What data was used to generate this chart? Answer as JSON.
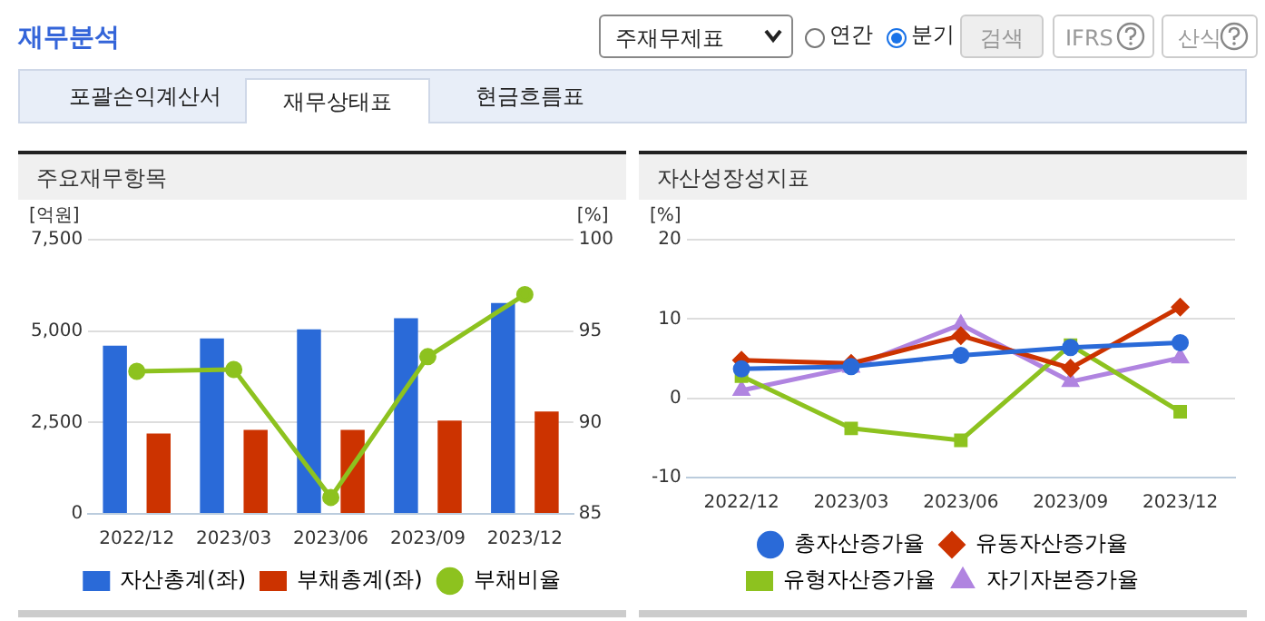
{
  "chart_data": [
    {
      "type": "bar",
      "title": "주요재무항목",
      "ylabel": "[억원]",
      "y2label": "[%]",
      "annotations": [
        "재무분석",
        "주재무제표",
        "연간",
        "분기",
        "검색",
        "IFRS",
        "산식",
        "포괄손익계산서",
        "재무상태표",
        "현금흐름표"
      ],
      "categories": [
        "2022/12",
        "2023/03",
        "2023/06",
        "2023/09",
        "2023/12"
      ],
      "series": [
        {
          "name": "자산총계(좌)",
          "color": "#2a6ad8",
          "values": [
            4600,
            4800,
            5050,
            5350,
            5770
          ]
        },
        {
          "name": "부채총계(좌)",
          "color": "#cc3300",
          "values": [
            2200,
            2300,
            2300,
            2550,
            2800
          ]
        },
        {
          "name": "부채비율",
          "type": "line",
          "axis": "y2",
          "marker": "circle",
          "color": "#8dc21f",
          "values": [
            92.8,
            92.9,
            85.9,
            93.6,
            97.0
          ]
        }
      ],
      "ylim": [
        0,
        7500
      ],
      "yticks": [
        0,
        {
          "value": 2500,
          "label": "2,500"
        },
        {
          "value": 5000,
          "label": "5,000"
        },
        {
          "value": 7500,
          "label": "7,500"
        }
      ],
      "y2lim": [
        85,
        100
      ],
      "y2ticks": [
        85,
        90,
        95,
        100
      ],
      "grid": "y",
      "legend": "bottom"
    },
    {
      "type": "line",
      "title": "자산성장성지표",
      "ylabel": "[%]",
      "categories": [
        "2022/12",
        "2023/03",
        "2023/06",
        "2023/09",
        "2023/12"
      ],
      "series": [
        {
          "name": "총자산증가율",
          "marker": "circle",
          "color": "#2a6ad8",
          "values": [
            3.7,
            4.0,
            5.4,
            6.4,
            7.0
          ]
        },
        {
          "name": "유동자산증가율",
          "marker": "diamond",
          "color": "#cc3300",
          "values": [
            4.8,
            4.4,
            7.9,
            3.8,
            11.5
          ]
        },
        {
          "name": "유형자산증가율",
          "marker": "square",
          "color": "#8dc21f",
          "values": [
            2.8,
            -3.8,
            -5.3,
            6.7,
            -1.7
          ]
        },
        {
          "name": "자기자본증가율",
          "marker": "triangle",
          "color": "#b084e0",
          "values": [
            1.0,
            3.9,
            9.3,
            2.1,
            5.1
          ]
        }
      ],
      "ylim": [
        -10,
        20
      ],
      "yticks": [
        -10,
        0,
        10,
        20
      ],
      "grid": "y",
      "legend": "bottom"
    }
  ]
}
